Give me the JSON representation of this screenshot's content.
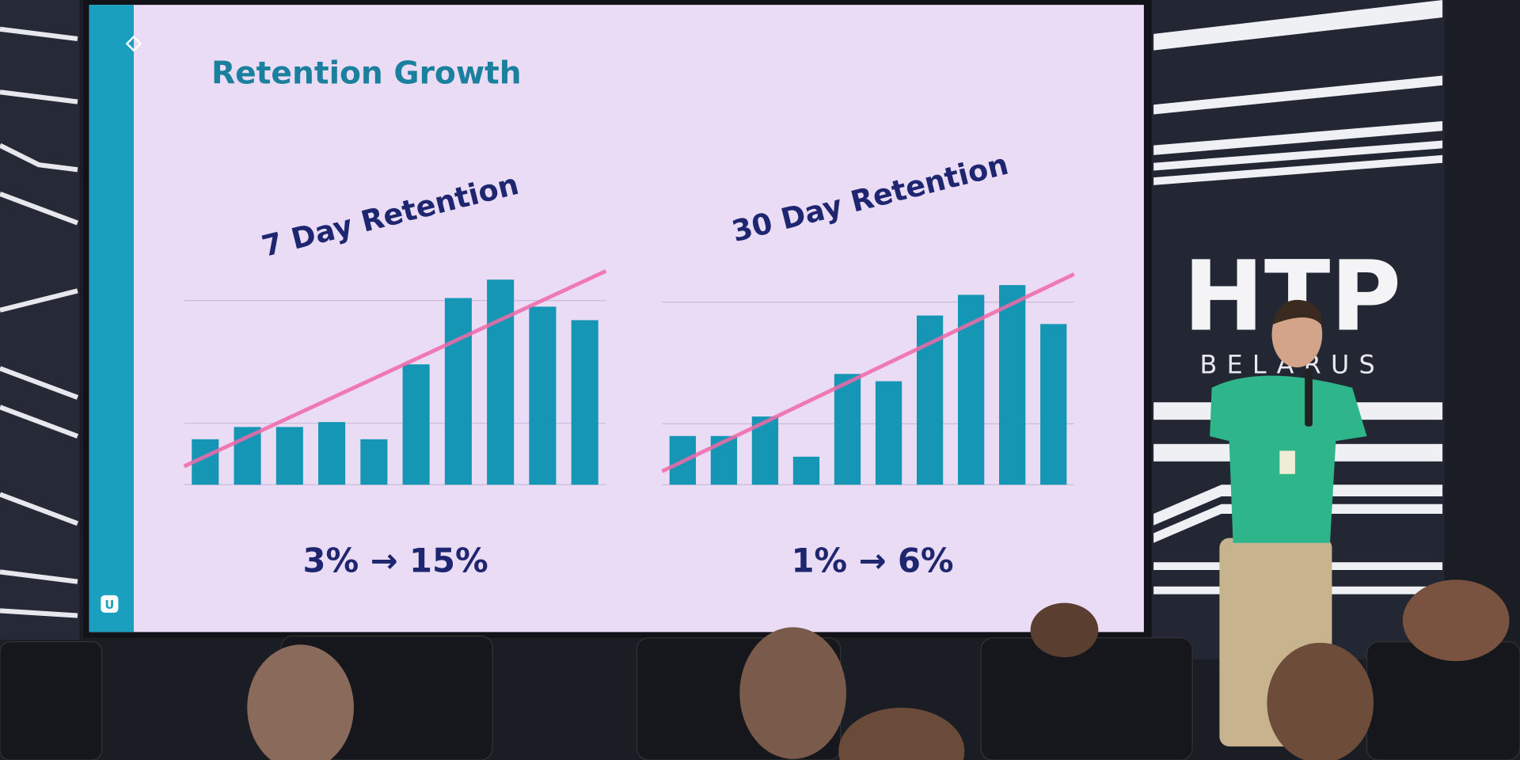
{
  "slide": {
    "title": "Retention Growth",
    "logo": "U"
  },
  "backdrop": {
    "brand": "HTP",
    "country": "BELARUS"
  },
  "chart_data": [
    {
      "type": "bar",
      "title": "7 Day Retention",
      "summary": "3% → 15%",
      "categories": [
        null,
        null,
        null,
        null,
        null,
        null,
        null,
        null,
        null,
        null
      ],
      "values": [
        3.7,
        4.7,
        4.7,
        5.1,
        3.7,
        9.8,
        15.2,
        16.7,
        14.5,
        13.4
      ],
      "trend": [
        1.5,
        17.4
      ],
      "trend_color": "#f06aa8",
      "color": "#1596b5",
      "ylim": [
        0,
        18
      ],
      "yticks": [
        0,
        5,
        15
      ],
      "grid": true
    },
    {
      "type": "bar",
      "title": "30 Day Retention",
      "summary": "1% → 6%",
      "categories": [
        null,
        null,
        null,
        null,
        null,
        null,
        null,
        null,
        null,
        null
      ],
      "values": [
        4.0,
        4.0,
        5.6,
        2.3,
        9.1,
        8.5,
        13.9,
        15.6,
        16.4,
        13.2
      ],
      "trend": [
        1.1,
        17.3
      ],
      "trend_color": "#f06aa8",
      "color": "#1596b5",
      "ylim": [
        0,
        18
      ],
      "yticks": [
        0,
        5,
        15
      ],
      "grid": true
    }
  ]
}
